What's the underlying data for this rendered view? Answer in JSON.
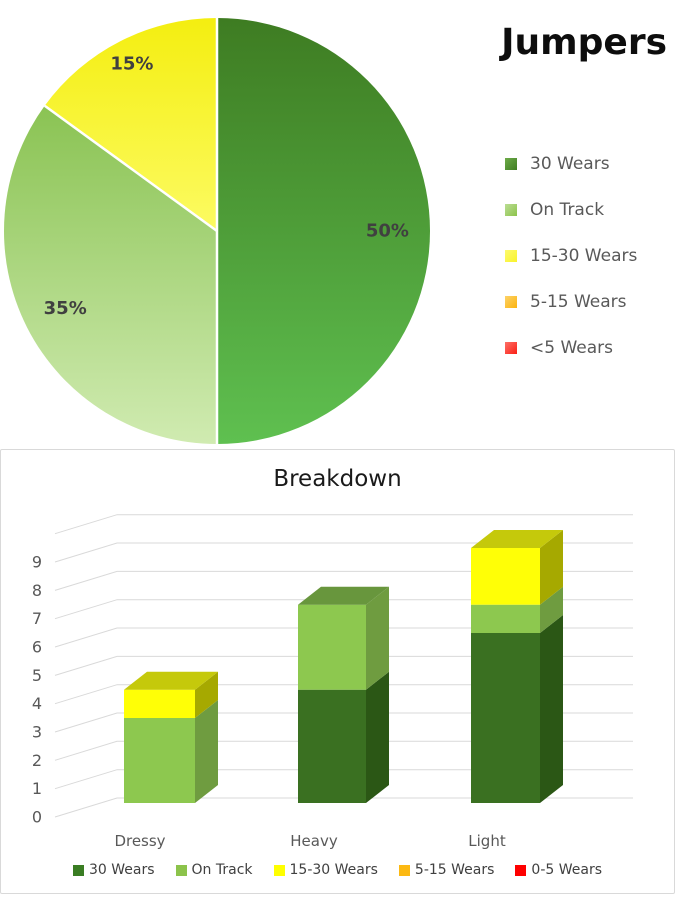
{
  "chart_data": [
    {
      "type": "pie",
      "title": "Jumpers",
      "direction": "clockwise",
      "start_angle_deg": 0,
      "legend_position": "right",
      "slices": [
        {
          "label": "30 Wears",
          "value": 50,
          "data_label": "50%",
          "color_top": "#3E7C22",
          "color_bottom": "#5FC050"
        },
        {
          "label": "On Track",
          "value": 35,
          "data_label": "35%",
          "color_top": "#8AC353",
          "color_bottom": "#D0EBB1"
        },
        {
          "label": "15-30 Wears",
          "value": 15,
          "data_label": "15%",
          "color_top": "#F4EE10",
          "color_bottom": "#FCFB62"
        },
        {
          "label": "5-15 Wears",
          "value": 0,
          "data_label": "",
          "color_top": "#FBB30E",
          "color_bottom": "#FDD268"
        },
        {
          "label": "<5 Wears",
          "value": 0,
          "data_label": "",
          "color_top": "#FB1F15",
          "color_bottom": "#FC7168"
        }
      ],
      "legend": [
        {
          "label": "30 Wears",
          "color": "#3F7D23",
          "color_light": "#6EAC49"
        },
        {
          "label": "On Track",
          "color": "#8CC34B",
          "color_light": "#BBDD94"
        },
        {
          "label": "15-30 Wears",
          "color": "#F9F32C",
          "color_light": "#FDFA6E"
        },
        {
          "label": "5-15 Wears",
          "color": "#FBB30E",
          "color_light": "#FDD268"
        },
        {
          "label": "<5 Wears",
          "color": "#FB1F15",
          "color_light": "#FC7168"
        }
      ],
      "label_color": "#404040"
    },
    {
      "type": "bar3d-stacked",
      "title": "Breakdown",
      "categories": [
        "Dressy",
        "Heavy",
        "Light"
      ],
      "series": [
        {
          "name": "30 Wears",
          "values": [
            0,
            4,
            6
          ],
          "front": "#3A7021",
          "side": "#2B5715",
          "top": "#46801F"
        },
        {
          "name": "On Track",
          "values": [
            3,
            3,
            1
          ],
          "front": "#8DC84F",
          "side": "#6F9C40",
          "top": "#68963D"
        },
        {
          "name": "15-30 Wears",
          "values": [
            1,
            0,
            2
          ],
          "front": "#FFFF06",
          "side": "#A6A900",
          "top": "#C5C90B"
        },
        {
          "name": "5-15 Wears",
          "values": [
            0,
            0,
            0
          ],
          "front": "#FFB805",
          "side": "#B78200",
          "top": "#D09B00"
        },
        {
          "name": "0-5 Wears",
          "values": [
            0,
            0,
            0
          ],
          "front": "#FE0000",
          "side": "#B00000",
          "top": "#C90000"
        }
      ],
      "totals": [
        4,
        7,
        9
      ],
      "ylim": [
        0,
        10
      ],
      "y_ticks": [
        0,
        1,
        2,
        3,
        4,
        5,
        6,
        7,
        8,
        9
      ],
      "grid": true,
      "grid_color": "#d9d9d9",
      "axis_text_color": "#595959",
      "legend_position": "bottom",
      "legend": [
        {
          "label": "30 Wears",
          "color": "#3A7D23"
        },
        {
          "label": "On Track",
          "color": "#8CC34B"
        },
        {
          "label": "15-30 Wears",
          "color": "#FFFF00"
        },
        {
          "label": "5-15 Wears",
          "color": "#FCB913"
        },
        {
          "label": "0-5 Wears",
          "color": "#FE0000"
        }
      ]
    }
  ]
}
